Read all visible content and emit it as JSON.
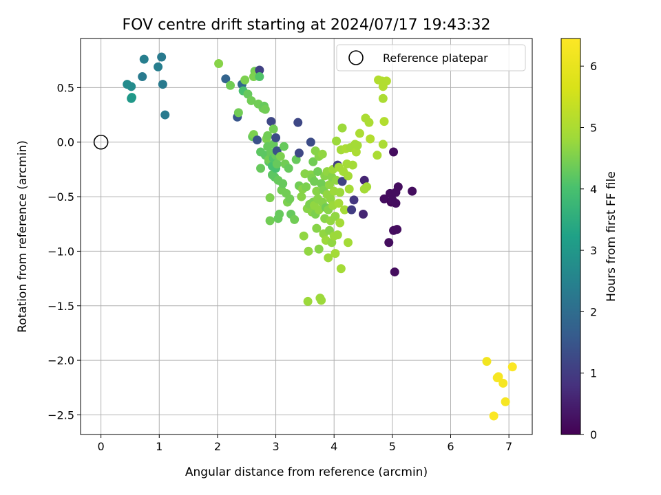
{
  "chart_data": {
    "type": "scatter",
    "title": "FOV centre drift starting at 2024/07/17 19:43:32",
    "xlabel": "Angular distance from reference (arcmin)",
    "ylabel": "Rotation from reference (arcmin)",
    "xlim": [
      -0.35,
      7.4
    ],
    "ylim": [
      -2.68,
      0.95
    ],
    "xticks": [
      "0",
      "1",
      "2",
      "3",
      "4",
      "5",
      "6",
      "7"
    ],
    "yticks": [
      "0.5",
      "0.0",
      "−0.5",
      "−1.0",
      "−1.5",
      "−2.0",
      "−2.5"
    ],
    "grid": true,
    "legend": {
      "position": "top-right",
      "entries": [
        "Reference platepar"
      ]
    },
    "reference_point": {
      "x": 0.0,
      "y": 0.0
    },
    "colorbar": {
      "label": "Hours from first FF file",
      "range": [
        0,
        6.45
      ],
      "ticks": [
        "0",
        "1",
        "2",
        "3",
        "4",
        "5",
        "6"
      ],
      "colormap": "viridis"
    },
    "series": [
      {
        "points": [
          {
            "x": 0.45,
            "y": 0.53,
            "c": 2.7
          },
          {
            "x": 0.52,
            "y": 0.51,
            "c": 2.7
          },
          {
            "x": 0.53,
            "y": 0.41,
            "c": 3.1
          },
          {
            "x": 0.52,
            "y": 0.4,
            "c": 3.0
          },
          {
            "x": 0.71,
            "y": 0.6,
            "c": 2.3
          },
          {
            "x": 0.74,
            "y": 0.76,
            "c": 2.4
          },
          {
            "x": 0.98,
            "y": 0.69,
            "c": 2.4
          },
          {
            "x": 1.04,
            "y": 0.78,
            "c": 2.3
          },
          {
            "x": 1.06,
            "y": 0.53,
            "c": 2.3
          },
          {
            "x": 1.1,
            "y": 0.25,
            "c": 2.3
          },
          {
            "x": 2.02,
            "y": 0.72,
            "c": 4.6
          },
          {
            "x": 2.14,
            "y": 0.58,
            "c": 1.8
          },
          {
            "x": 2.22,
            "y": 0.52,
            "c": 4.4
          },
          {
            "x": 2.34,
            "y": 0.23,
            "c": 1.5
          },
          {
            "x": 2.36,
            "y": 0.27,
            "c": 4.4
          },
          {
            "x": 2.42,
            "y": 0.53,
            "c": 1.9
          },
          {
            "x": 2.44,
            "y": 0.47,
            "c": 4.0
          },
          {
            "x": 2.47,
            "y": 0.57,
            "c": 4.5
          },
          {
            "x": 2.52,
            "y": 0.44,
            "c": 4.3
          },
          {
            "x": 2.58,
            "y": 0.38,
            "c": 4.4
          },
          {
            "x": 2.6,
            "y": 0.05,
            "c": 4.3
          },
          {
            "x": 2.62,
            "y": 0.07,
            "c": 4.5
          },
          {
            "x": 2.62,
            "y": 0.6,
            "c": 4.5
          },
          {
            "x": 2.64,
            "y": 0.65,
            "c": 4.4
          },
          {
            "x": 2.66,
            "y": 0.63,
            "c": 4.5
          },
          {
            "x": 2.68,
            "y": 0.02,
            "c": 1.4
          },
          {
            "x": 2.7,
            "y": 0.35,
            "c": 4.4
          },
          {
            "x": 2.72,
            "y": 0.66,
            "c": 1.1
          },
          {
            "x": 2.72,
            "y": 0.6,
            "c": 4.1
          },
          {
            "x": 2.74,
            "y": -0.09,
            "c": 4.2
          },
          {
            "x": 2.74,
            "y": -0.24,
            "c": 4.3
          },
          {
            "x": 2.78,
            "y": 0.31,
            "c": 4.4
          },
          {
            "x": 2.8,
            "y": 0.33,
            "c": 4.3
          },
          {
            "x": 2.82,
            "y": 0.3,
            "c": 4.4
          },
          {
            "x": 2.82,
            "y": -0.12,
            "c": 4.2
          },
          {
            "x": 2.84,
            "y": 0.03,
            "c": 4.5
          },
          {
            "x": 2.86,
            "y": -0.04,
            "c": 4.3
          },
          {
            "x": 2.86,
            "y": 0.06,
            "c": 4.4
          },
          {
            "x": 2.88,
            "y": -0.18,
            "c": 4.2
          },
          {
            "x": 2.88,
            "y": -0.16,
            "c": 4.4
          },
          {
            "x": 2.9,
            "y": -0.51,
            "c": 4.5
          },
          {
            "x": 2.9,
            "y": -0.72,
            "c": 4.4
          },
          {
            "x": 2.92,
            "y": 0.19,
            "c": 1.2
          },
          {
            "x": 2.92,
            "y": -0.1,
            "c": 4.3
          },
          {
            "x": 2.94,
            "y": -0.22,
            "c": 4.0
          },
          {
            "x": 2.94,
            "y": -0.3,
            "c": 4.2
          },
          {
            "x": 2.96,
            "y": 0.12,
            "c": 4.4
          },
          {
            "x": 2.96,
            "y": -0.02,
            "c": 4.3
          },
          {
            "x": 2.96,
            "y": -0.15,
            "c": 4.1
          },
          {
            "x": 2.98,
            "y": -0.32,
            "c": 4.2
          },
          {
            "x": 3.0,
            "y": 0.04,
            "c": 1.3
          },
          {
            "x": 3.0,
            "y": -0.12,
            "c": 4.3
          },
          {
            "x": 3.0,
            "y": -0.24,
            "c": 4.0
          },
          {
            "x": 3.02,
            "y": -0.08,
            "c": 1.4
          },
          {
            "x": 3.02,
            "y": -0.2,
            "c": 4.3
          },
          {
            "x": 3.04,
            "y": -0.35,
            "c": 4.3
          },
          {
            "x": 3.04,
            "y": -0.7,
            "c": 4.3
          },
          {
            "x": 3.06,
            "y": -0.66,
            "c": 4.3
          },
          {
            "x": 3.08,
            "y": -0.13,
            "c": 4.5
          },
          {
            "x": 3.1,
            "y": -0.44,
            "c": 4.4
          },
          {
            "x": 3.12,
            "y": -0.38,
            "c": 4.3
          },
          {
            "x": 3.14,
            "y": -0.04,
            "c": 4.3
          },
          {
            "x": 3.16,
            "y": -0.2,
            "c": 4.4
          },
          {
            "x": 3.18,
            "y": -0.47,
            "c": 4.4
          },
          {
            "x": 3.2,
            "y": -0.55,
            "c": 4.5
          },
          {
            "x": 3.22,
            "y": -0.24,
            "c": 4.3
          },
          {
            "x": 3.24,
            "y": -0.52,
            "c": 4.4
          },
          {
            "x": 3.26,
            "y": -0.66,
            "c": 4.3
          },
          {
            "x": 3.32,
            "y": -0.71,
            "c": 4.4
          },
          {
            "x": 3.35,
            "y": -0.16,
            "c": 4.3
          },
          {
            "x": 3.38,
            "y": 0.18,
            "c": 1.2
          },
          {
            "x": 3.4,
            "y": -0.1,
            "c": 1.2
          },
          {
            "x": 3.4,
            "y": -0.4,
            "c": 4.4
          },
          {
            "x": 3.44,
            "y": -0.5,
            "c": 4.6
          },
          {
            "x": 3.46,
            "y": -0.43,
            "c": 4.6
          },
          {
            "x": 3.48,
            "y": -0.86,
            "c": 4.7
          },
          {
            "x": 3.5,
            "y": -0.29,
            "c": 4.6
          },
          {
            "x": 3.52,
            "y": -0.41,
            "c": 4.5
          },
          {
            "x": 3.54,
            "y": -0.61,
            "c": 4.6
          },
          {
            "x": 3.55,
            "y": -1.46,
            "c": 4.8
          },
          {
            "x": 3.56,
            "y": -1.0,
            "c": 4.7
          },
          {
            "x": 3.58,
            "y": -0.57,
            "c": 4.5
          },
          {
            "x": 3.6,
            "y": 0.0,
            "c": 1.3
          },
          {
            "x": 3.6,
            "y": -0.3,
            "c": 4.6
          },
          {
            "x": 3.62,
            "y": -0.33,
            "c": 4.5
          },
          {
            "x": 3.62,
            "y": -0.64,
            "c": 4.6
          },
          {
            "x": 3.64,
            "y": -0.18,
            "c": 4.4
          },
          {
            "x": 3.64,
            "y": -0.55,
            "c": 4.5
          },
          {
            "x": 3.66,
            "y": -0.36,
            "c": 4.4
          },
          {
            "x": 3.66,
            "y": -0.58,
            "c": 4.7
          },
          {
            "x": 3.68,
            "y": -0.08,
            "c": 4.6
          },
          {
            "x": 3.68,
            "y": -0.66,
            "c": 4.5
          },
          {
            "x": 3.7,
            "y": -0.45,
            "c": 4.6
          },
          {
            "x": 3.7,
            "y": -0.79,
            "c": 4.6
          },
          {
            "x": 3.72,
            "y": -0.27,
            "c": 4.4
          },
          {
            "x": 3.72,
            "y": -0.52,
            "c": 4.6
          },
          {
            "x": 3.74,
            "y": -0.13,
            "c": 4.6
          },
          {
            "x": 3.74,
            "y": -0.62,
            "c": 4.7
          },
          {
            "x": 3.74,
            "y": -0.98,
            "c": 4.6
          },
          {
            "x": 3.76,
            "y": -1.43,
            "c": 4.8
          },
          {
            "x": 3.78,
            "y": -1.45,
            "c": 4.8
          },
          {
            "x": 3.78,
            "y": -0.38,
            "c": 4.4
          },
          {
            "x": 3.8,
            "y": -0.11,
            "c": 4.7
          },
          {
            "x": 3.8,
            "y": -0.55,
            "c": 4.6
          },
          {
            "x": 3.82,
            "y": -0.44,
            "c": 4.5
          },
          {
            "x": 3.82,
            "y": -0.84,
            "c": 4.7
          },
          {
            "x": 3.84,
            "y": -0.31,
            "c": 4.6
          },
          {
            "x": 3.84,
            "y": -0.7,
            "c": 4.6
          },
          {
            "x": 3.86,
            "y": -0.6,
            "c": 4.4
          },
          {
            "x": 3.86,
            "y": -0.9,
            "c": 4.8
          },
          {
            "x": 3.88,
            "y": -0.27,
            "c": 4.7
          },
          {
            "x": 3.88,
            "y": -0.48,
            "c": 4.7
          },
          {
            "x": 3.9,
            "y": -1.06,
            "c": 4.8
          },
          {
            "x": 3.9,
            "y": -0.62,
            "c": 4.6
          },
          {
            "x": 3.92,
            "y": -0.39,
            "c": 4.7
          },
          {
            "x": 3.92,
            "y": -0.81,
            "c": 4.6
          },
          {
            "x": 3.94,
            "y": -0.52,
            "c": 4.7
          },
          {
            "x": 3.94,
            "y": -0.72,
            "c": 4.7
          },
          {
            "x": 3.96,
            "y": -0.32,
            "c": 4.6
          },
          {
            "x": 3.96,
            "y": -0.92,
            "c": 4.7
          },
          {
            "x": 3.98,
            "y": -0.25,
            "c": 4.8
          },
          {
            "x": 3.98,
            "y": -0.58,
            "c": 4.8
          },
          {
            "x": 4.0,
            "y": -0.45,
            "c": 4.8
          },
          {
            "x": 4.0,
            "y": -0.86,
            "c": 4.8
          },
          {
            "x": 4.02,
            "y": -1.02,
            "c": 4.9
          },
          {
            "x": 4.02,
            "y": -0.68,
            "c": 4.7
          },
          {
            "x": 4.04,
            "y": -0.35,
            "c": 4.7
          },
          {
            "x": 4.04,
            "y": 0.01,
            "c": 4.8
          },
          {
            "x": 4.06,
            "y": -0.85,
            "c": 4.8
          },
          {
            "x": 4.06,
            "y": -0.21,
            "c": 1.0
          },
          {
            "x": 4.08,
            "y": -0.56,
            "c": 4.9
          },
          {
            "x": 4.08,
            "y": -0.23,
            "c": 4.9
          },
          {
            "x": 4.1,
            "y": -0.46,
            "c": 4.8
          },
          {
            "x": 4.1,
            "y": -0.74,
            "c": 4.9
          },
          {
            "x": 4.12,
            "y": -1.16,
            "c": 4.9
          },
          {
            "x": 4.12,
            "y": -0.07,
            "c": 4.9
          },
          {
            "x": 4.14,
            "y": -0.36,
            "c": 1.1
          },
          {
            "x": 4.14,
            "y": 0.13,
            "c": 4.8
          },
          {
            "x": 4.16,
            "y": -0.27,
            "c": 4.9
          },
          {
            "x": 4.18,
            "y": -0.62,
            "c": 4.9
          },
          {
            "x": 4.2,
            "y": -0.06,
            "c": 5.0
          },
          {
            "x": 4.22,
            "y": -0.2,
            "c": 4.9
          },
          {
            "x": 4.24,
            "y": -0.31,
            "c": 4.9
          },
          {
            "x": 4.24,
            "y": -0.92,
            "c": 4.9
          },
          {
            "x": 4.26,
            "y": -0.43,
            "c": 4.9
          },
          {
            "x": 4.28,
            "y": -0.05,
            "c": 4.9
          },
          {
            "x": 4.3,
            "y": -0.62,
            "c": 1.0
          },
          {
            "x": 4.32,
            "y": -0.21,
            "c": 4.9
          },
          {
            "x": 4.34,
            "y": -0.53,
            "c": 0.9
          },
          {
            "x": 4.36,
            "y": -0.02,
            "c": 4.9
          },
          {
            "x": 4.38,
            "y": -0.09,
            "c": 5.0
          },
          {
            "x": 4.4,
            "y": -0.03,
            "c": 4.9
          },
          {
            "x": 4.44,
            "y": 0.08,
            "c": 5.0
          },
          {
            "x": 4.5,
            "y": -0.66,
            "c": 0.6
          },
          {
            "x": 4.52,
            "y": -0.35,
            "c": 0.6
          },
          {
            "x": 4.52,
            "y": -0.43,
            "c": 4.9
          },
          {
            "x": 4.54,
            "y": 0.22,
            "c": 5.0
          },
          {
            "x": 4.56,
            "y": -0.41,
            "c": 4.9
          },
          {
            "x": 4.6,
            "y": 0.18,
            "c": 5.0
          },
          {
            "x": 4.62,
            "y": 0.03,
            "c": 5.1
          },
          {
            "x": 4.74,
            "y": -0.12,
            "c": 5.0
          },
          {
            "x": 4.76,
            "y": 0.57,
            "c": 5.1
          },
          {
            "x": 4.82,
            "y": 0.56,
            "c": 5.1
          },
          {
            "x": 4.84,
            "y": 0.51,
            "c": 5.1
          },
          {
            "x": 4.84,
            "y": 0.4,
            "c": 5.0
          },
          {
            "x": 4.84,
            "y": -0.02,
            "c": 5.0
          },
          {
            "x": 4.86,
            "y": 0.19,
            "c": 5.1
          },
          {
            "x": 4.86,
            "y": -0.52,
            "c": 0.2
          },
          {
            "x": 4.9,
            "y": 0.56,
            "c": 5.1
          },
          {
            "x": 4.94,
            "y": -0.92,
            "c": 0.2
          },
          {
            "x": 4.96,
            "y": -0.47,
            "c": 0.2
          },
          {
            "x": 4.98,
            "y": -0.55,
            "c": 0.1
          },
          {
            "x": 5.0,
            "y": -0.53,
            "c": 0.2
          },
          {
            "x": 5.02,
            "y": -0.81,
            "c": 0.2
          },
          {
            "x": 5.02,
            "y": -0.09,
            "c": 0.2
          },
          {
            "x": 5.04,
            "y": -1.19,
            "c": 0.2
          },
          {
            "x": 5.06,
            "y": -0.56,
            "c": 0.2
          },
          {
            "x": 5.06,
            "y": -0.46,
            "c": 0.2
          },
          {
            "x": 5.08,
            "y": -0.8,
            "c": 0.2
          },
          {
            "x": 5.1,
            "y": -0.41,
            "c": 0.2
          },
          {
            "x": 5.34,
            "y": -0.45,
            "c": 0.2
          },
          {
            "x": 6.62,
            "y": -2.01,
            "c": 6.2
          },
          {
            "x": 6.74,
            "y": -2.51,
            "c": 6.4
          },
          {
            "x": 6.8,
            "y": -2.16,
            "c": 6.3
          },
          {
            "x": 6.82,
            "y": -2.15,
            "c": 6.3
          },
          {
            "x": 6.9,
            "y": -2.21,
            "c": 6.3
          },
          {
            "x": 6.94,
            "y": -2.38,
            "c": 6.3
          },
          {
            "x": 7.06,
            "y": -2.06,
            "c": 6.4
          }
        ]
      }
    ]
  }
}
